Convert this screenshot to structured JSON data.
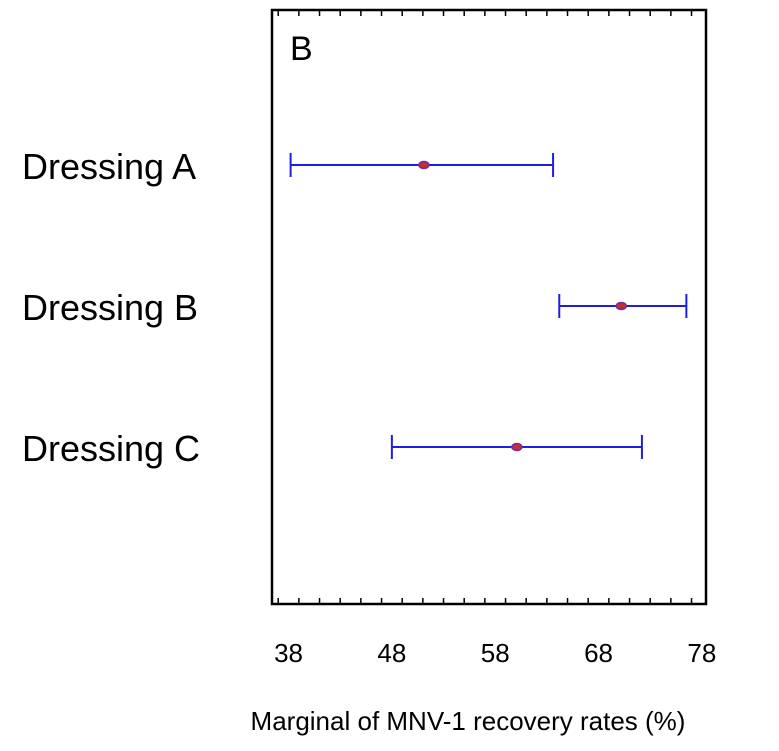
{
  "chart_data": {
    "type": "interval",
    "panel_label": "B",
    "categories": [
      "Dressing A",
      "Dressing B",
      "Dressing C"
    ],
    "points": [
      {
        "category": "Dressing A",
        "mean": 51.1,
        "lower": 38.2,
        "upper": 63.6
      },
      {
        "category": "Dressing B",
        "mean": 70.2,
        "lower": 64.2,
        "upper": 76.5
      },
      {
        "category": "Dressing C",
        "mean": 60.1,
        "lower": 48.0,
        "upper": 72.2
      }
    ],
    "xlim": [
      36.4,
      78.4
    ],
    "xticks": [
      38,
      48,
      58,
      68,
      78
    ],
    "xlabel": "Marginal of MNV-1 recovery rates (%)",
    "ylabel": "",
    "grid": false,
    "colors": {
      "interval": "#1f1fe0",
      "marker_fill": "#c03030",
      "marker_edge": "#7a2a9a",
      "axis": "#000000"
    }
  }
}
